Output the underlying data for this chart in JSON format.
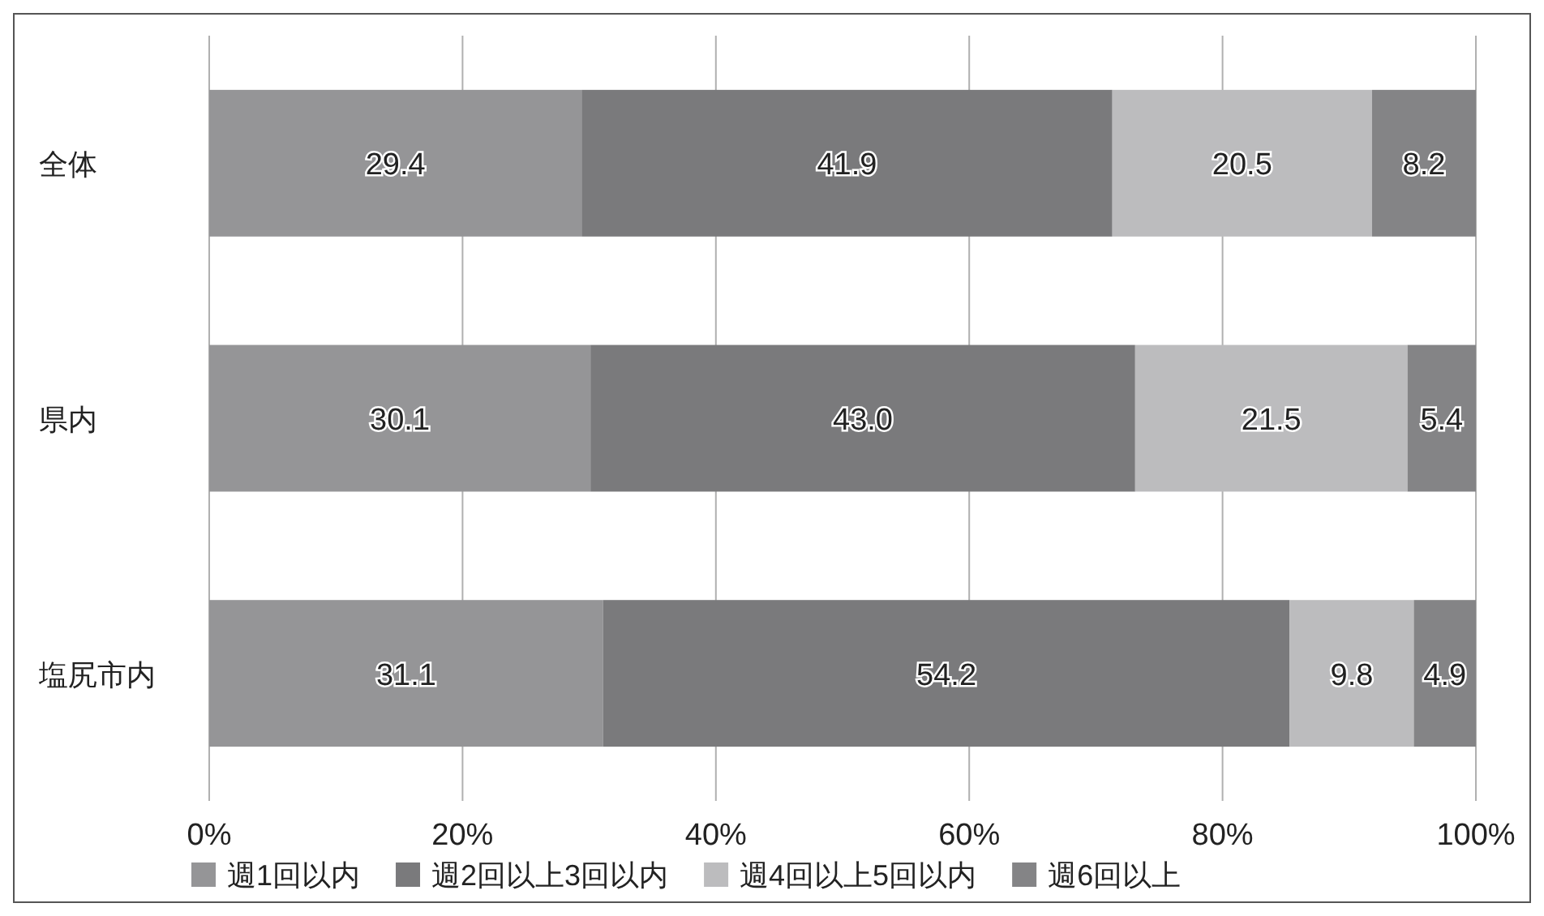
{
  "chart_data": {
    "type": "bar",
    "orientation": "horizontal",
    "stacked": true,
    "categories": [
      "全体",
      "県内",
      "塩尻市内"
    ],
    "series": [
      {
        "name": "週1回以内",
        "color": "#959597",
        "values": [
          29.4,
          30.1,
          31.1
        ],
        "value_labels": [
          "29.4",
          "30.1",
          "31.1"
        ]
      },
      {
        "name": "週2回以上3回以内",
        "color": "#7a7a7c",
        "values": [
          41.9,
          43.0,
          54.2
        ],
        "value_labels": [
          "41.9",
          "43.0",
          "54.2"
        ]
      },
      {
        "name": "週4回以上5回以内",
        "color": "#bcbcbe",
        "values": [
          20.5,
          21.5,
          9.8
        ],
        "value_labels": [
          "20.5",
          "21.5",
          "9.8"
        ]
      },
      {
        "name": "週6回以上",
        "color": "#848486",
        "values": [
          8.2,
          5.4,
          4.9
        ],
        "value_labels": [
          "8.2",
          "5.4",
          "4.9"
        ]
      }
    ],
    "xlim": [
      0,
      100
    ],
    "xticks": [
      {
        "value": 0,
        "label": "0%"
      },
      {
        "value": 20,
        "label": "20%"
      },
      {
        "value": 40,
        "label": "40%"
      },
      {
        "value": 60,
        "label": "60%"
      },
      {
        "value": 80,
        "label": "80%"
      },
      {
        "value": 100,
        "label": "100%"
      }
    ],
    "grid": "x",
    "legend": "bottom"
  }
}
